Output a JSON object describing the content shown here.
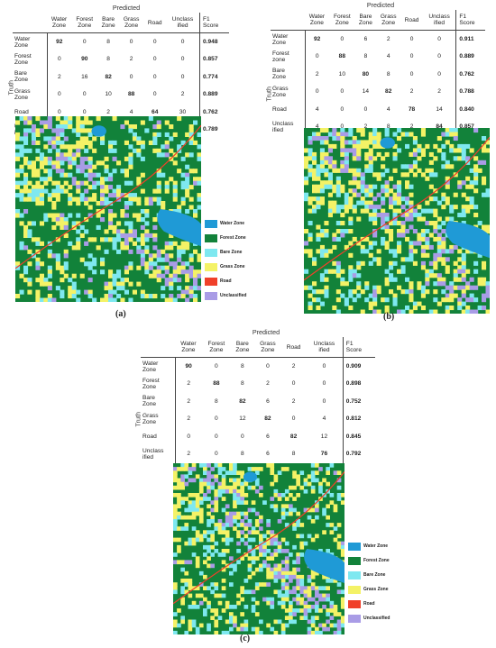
{
  "chart_data": [
    {
      "type": "table",
      "caption": "(a)",
      "xlabel": "Predicted",
      "ylabel": "Truth",
      "columns": [
        "Water Zone",
        "Forest Zone",
        "Bare Zone",
        "Grass Zone",
        "Road",
        "Unclassified"
      ],
      "f1_header": "F1 Score",
      "rows": [
        {
          "label": "Water Zone",
          "values": [
            "92",
            "0",
            "8",
            "0",
            "0",
            "0"
          ],
          "f1": "0.948"
        },
        {
          "label": "Forest Zone",
          "values": [
            "0",
            "90",
            "8",
            "2",
            "0",
            "0"
          ],
          "f1": "0.857"
        },
        {
          "label": "Bare Zone",
          "values": [
            "2",
            "16",
            "82",
            "0",
            "0",
            "0"
          ],
          "f1": "0.774"
        },
        {
          "label": "Grass Zone",
          "values": [
            "0",
            "0",
            "10",
            "88",
            "0",
            "2"
          ],
          "f1": "0.889"
        },
        {
          "label": "Road",
          "values": [
            "0",
            "0",
            "2",
            "4",
            "64",
            "30"
          ],
          "f1": "0.762"
        },
        {
          "label": "Unclassified",
          "values": [
            "0",
            "4",
            "2",
            "4",
            "4",
            "86"
          ],
          "f1": "0.789"
        }
      ],
      "legend": [
        "Water Zone",
        "Forest Zone",
        "Bare Zone",
        "Grass Zone",
        "Road",
        "Unclassified"
      ]
    },
    {
      "type": "table",
      "caption": "(b)",
      "xlabel": "Predicted",
      "ylabel": "Truth",
      "columns": [
        "Water Zone",
        "Forest Zone",
        "Bare Zone",
        "Grass Zone",
        "Road",
        "Unclassified"
      ],
      "f1_header": "F1 Score",
      "rows": [
        {
          "label": "Water Zone",
          "values": [
            "92",
            "0",
            "6",
            "2",
            "0",
            "0"
          ],
          "f1": "0.911"
        },
        {
          "label": "Forest zone",
          "values": [
            "0",
            "88",
            "8",
            "4",
            "0",
            "0"
          ],
          "f1": "0.889"
        },
        {
          "label": "Bare Zone",
          "values": [
            "2",
            "10",
            "80",
            "8",
            "0",
            "0"
          ],
          "f1": "0.762"
        },
        {
          "label": "Grass Zone",
          "values": [
            "0",
            "0",
            "14",
            "82",
            "2",
            "2"
          ],
          "f1": "0.788"
        },
        {
          "label": "Road",
          "values": [
            "4",
            "0",
            "0",
            "4",
            "78",
            "14"
          ],
          "f1": "0.840"
        },
        {
          "label": "Unclassified",
          "values": [
            "4",
            "0",
            "2",
            "8",
            "2",
            "84"
          ],
          "f1": "0.857"
        }
      ],
      "legend": []
    },
    {
      "type": "table",
      "caption": "(c)",
      "xlabel": "Predicted",
      "ylabel": "Truth",
      "columns": [
        "Water Zone",
        "Forest Zone",
        "Bare Zone",
        "Grass Zone",
        "Road",
        "Unclassified"
      ],
      "f1_header": "F1 Score",
      "rows": [
        {
          "label": "Water Zone",
          "values": [
            "90",
            "0",
            "8",
            "0",
            "2",
            "0"
          ],
          "f1": "0.909"
        },
        {
          "label": "Forest Zone",
          "values": [
            "2",
            "88",
            "8",
            "2",
            "0",
            "0"
          ],
          "f1": "0.898"
        },
        {
          "label": "Bare Zone",
          "values": [
            "2",
            "8",
            "82",
            "6",
            "2",
            "0"
          ],
          "f1": "0.752"
        },
        {
          "label": "Grass Zone",
          "values": [
            "2",
            "0",
            "12",
            "82",
            "0",
            "4"
          ],
          "f1": "0.812"
        },
        {
          "label": "Road",
          "values": [
            "0",
            "0",
            "0",
            "6",
            "82",
            "12"
          ],
          "f1": "0.845"
        },
        {
          "label": "Unclassified",
          "values": [
            "2",
            "0",
            "8",
            "6",
            "8",
            "76"
          ],
          "f1": "0.792"
        }
      ],
      "legend": [
        "Water Zone",
        "Forest Zone",
        "Bare Zone",
        "Grass Zone",
        "Road",
        "Unclassified"
      ]
    }
  ],
  "class_colors": [
    "#1f9ad6",
    "#12823a",
    "#7ee8f0",
    "#f4f266",
    "#f0402a",
    "#a99ce6"
  ],
  "diag_highlight": [
    0,
    1,
    2,
    3,
    4,
    5
  ]
}
